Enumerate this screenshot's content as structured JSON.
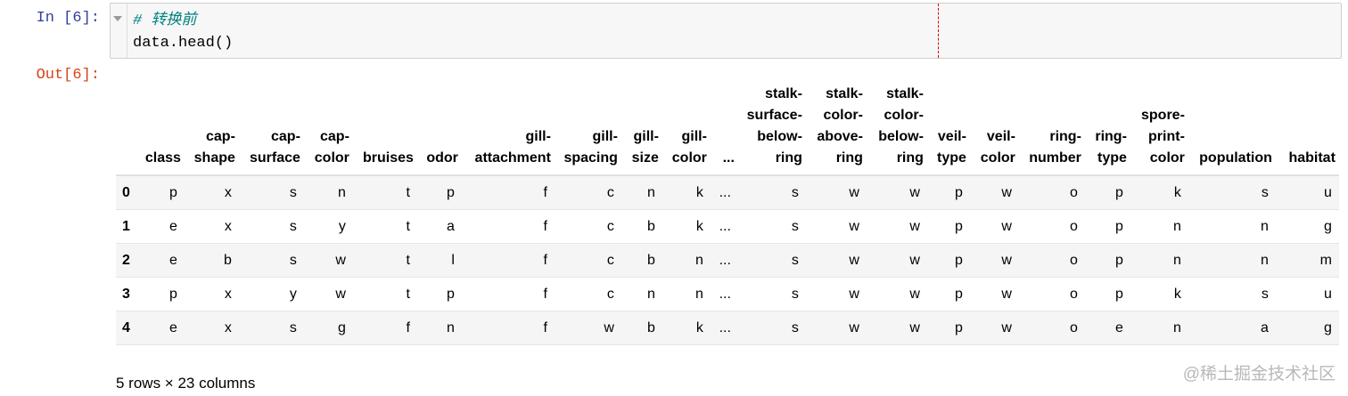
{
  "input": {
    "prompt": "In [6]:",
    "comment": "# 转换前",
    "code": "data.head()"
  },
  "output": {
    "prompt": "Out[6]:",
    "columns": [
      "",
      "class",
      "cap-shape",
      "cap-surface",
      "cap-color",
      "bruises",
      "odor",
      "gill-attachment",
      "gill-spacing",
      "gill-size",
      "gill-color",
      "...",
      "stalk-surface-below-ring",
      "stalk-color-above-ring",
      "stalk-color-below-ring",
      "veil-type",
      "veil-color",
      "ring-number",
      "ring-type",
      "spore-print-color",
      "population",
      "habitat"
    ],
    "rows": [
      [
        "0",
        "p",
        "x",
        "s",
        "n",
        "t",
        "p",
        "f",
        "c",
        "n",
        "k",
        "...",
        "s",
        "w",
        "w",
        "p",
        "w",
        "o",
        "p",
        "k",
        "s",
        "u"
      ],
      [
        "1",
        "e",
        "x",
        "s",
        "y",
        "t",
        "a",
        "f",
        "c",
        "b",
        "k",
        "...",
        "s",
        "w",
        "w",
        "p",
        "w",
        "o",
        "p",
        "n",
        "n",
        "g"
      ],
      [
        "2",
        "e",
        "b",
        "s",
        "w",
        "t",
        "l",
        "f",
        "c",
        "b",
        "n",
        "...",
        "s",
        "w",
        "w",
        "p",
        "w",
        "o",
        "p",
        "n",
        "n",
        "m"
      ],
      [
        "3",
        "p",
        "x",
        "y",
        "w",
        "t",
        "p",
        "f",
        "c",
        "n",
        "n",
        "...",
        "s",
        "w",
        "w",
        "p",
        "w",
        "o",
        "p",
        "k",
        "s",
        "u"
      ],
      [
        "4",
        "e",
        "x",
        "s",
        "g",
        "f",
        "n",
        "f",
        "w",
        "b",
        "k",
        "...",
        "s",
        "w",
        "w",
        "p",
        "w",
        "o",
        "e",
        "n",
        "a",
        "g"
      ]
    ],
    "summary": "5 rows × 23 columns"
  },
  "watermark": "@稀土掘金技术社区"
}
